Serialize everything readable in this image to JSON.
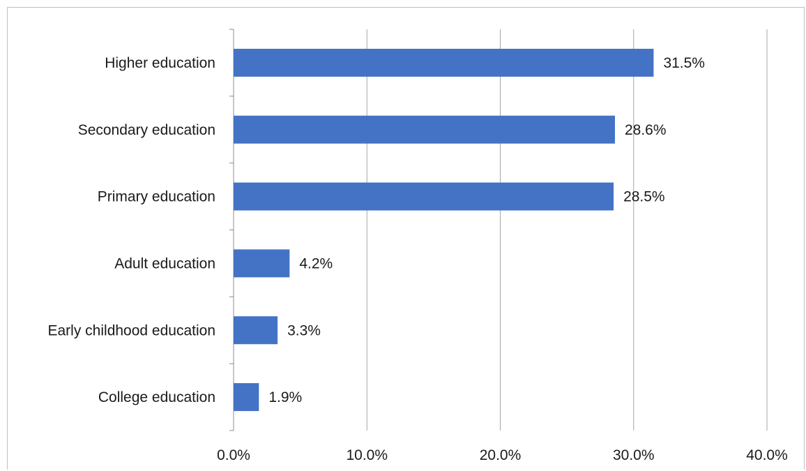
{
  "chart_data": {
    "type": "bar",
    "orientation": "horizontal",
    "title": "",
    "xlabel": "",
    "ylabel": "",
    "categories": [
      "Higher education",
      "Secondary education",
      "Primary education",
      "Adult education",
      "Early childhood education",
      "College education"
    ],
    "values": [
      31.5,
      28.6,
      28.5,
      4.2,
      3.3,
      1.9
    ],
    "value_labels": [
      "31.5%",
      "28.6%",
      "28.5%",
      "4.2%",
      "3.3%",
      "1.9%"
    ],
    "xlim": [
      0,
      40
    ],
    "ticks": [
      0,
      10,
      20,
      30,
      40
    ],
    "tick_labels": [
      "0.0%",
      "10.0%",
      "20.0%",
      "30.0%",
      "40.0%"
    ],
    "grid": "vertical",
    "legend": "none",
    "bar_color": "#4472c4",
    "grid_color": "#a6a6a6"
  }
}
